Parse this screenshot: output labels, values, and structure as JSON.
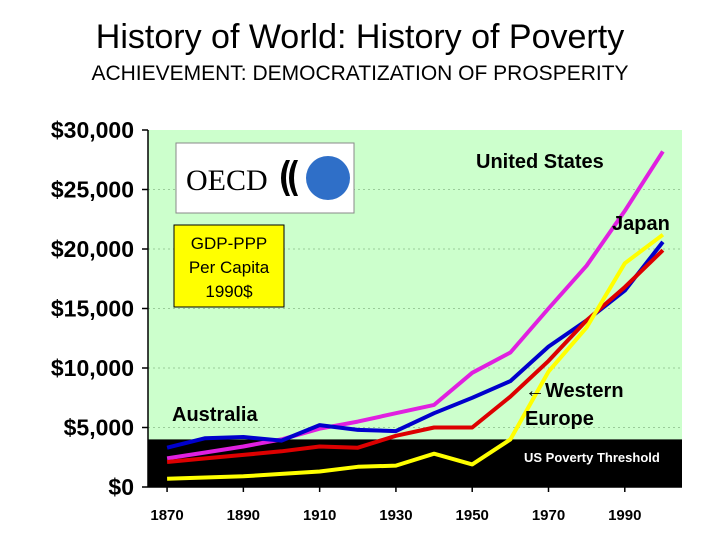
{
  "title": "History of World: History of Poverty",
  "subtitle": "ACHIEVEMENT: DEMOCRATIZATION OF PROSPERITY",
  "logo": {
    "text": "OECD",
    "circle_color": "#2f6fc8"
  },
  "info_box": {
    "lines": [
      "GDP-PPP",
      "Per Capita",
      "1990$"
    ],
    "fill": "#ffff00"
  },
  "poverty_band": {
    "label": "US Poverty Threshold",
    "top_value": 4000,
    "color": "#000000"
  },
  "annotations": {
    "united_states": "United States",
    "japan": "Japan",
    "western_europe_1": "←Western",
    "western_europe_2": "Europe",
    "australia": "Australia"
  },
  "colors": {
    "plot_bg": "#ccffcc",
    "grid": "#99cc99"
  },
  "chart_data": {
    "type": "line",
    "title": "History of World: History of Poverty",
    "subtitle": "ACHIEVEMENT: DEMOCRATIZATION OF PROSPERITY",
    "xlabel": "",
    "ylabel": "",
    "xlim": [
      1865,
      2005
    ],
    "ylim": [
      0,
      30000
    ],
    "x_ticks": [
      1870,
      1890,
      1910,
      1930,
      1950,
      1970,
      1990
    ],
    "y_ticks": [
      0,
      5000,
      10000,
      15000,
      20000,
      25000,
      30000
    ],
    "y_tick_labels": [
      "$0",
      "$5,000",
      "$10,000",
      "$15,000",
      "$20,000",
      "$25,000",
      "$30,000"
    ],
    "grid": true,
    "x": [
      1870,
      1880,
      1890,
      1900,
      1910,
      1920,
      1930,
      1940,
      1950,
      1960,
      1970,
      1980,
      1990,
      2000
    ],
    "series": [
      {
        "name": "United States",
        "color": "#e020e0",
        "values": [
          2400,
          2900,
          3400,
          4000,
          4900,
          5500,
          6200,
          6900,
          9600,
          11300,
          15000,
          18600,
          23200,
          28200
        ]
      },
      {
        "name": "Australia",
        "color": "#0000cc",
        "values": [
          3300,
          4100,
          4200,
          3900,
          5200,
          4800,
          4700,
          6200,
          7500,
          8900,
          11800,
          14000,
          16500,
          20600
        ]
      },
      {
        "name": "Western Europe",
        "color": "#dd0000",
        "values": [
          2100,
          2400,
          2700,
          3000,
          3400,
          3300,
          4300,
          5000,
          5000,
          7600,
          10600,
          14000,
          16800,
          19900
        ]
      },
      {
        "name": "Japan",
        "color": "#ffff00",
        "values": [
          700,
          800,
          900,
          1100,
          1300,
          1700,
          1800,
          2800,
          1900,
          4000,
          9700,
          13400,
          18800,
          21200
        ]
      }
    ]
  }
}
